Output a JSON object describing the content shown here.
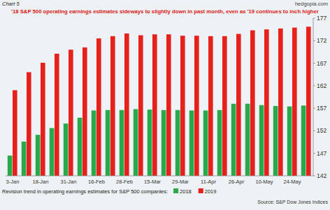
{
  "chart_data": {
    "type": "bar",
    "title": "'18 S&P 500 operating earnings estimates sideways to slightly down in past month, even as '19 continues to inch higher",
    "annotations": [
      "Chart 5",
      "hedgopia.com",
      "Revision trend in operating earnings estimates for S&P 500 companies:",
      "Source: S&P Dow Jones Indices"
    ],
    "categories": [
      "3-Jan",
      null,
      "18-Jan",
      null,
      "31-Jan",
      null,
      "16-Feb",
      null,
      "28-Feb",
      null,
      "15-Mar",
      null,
      "29-Mar",
      null,
      "11-Apr",
      null,
      "26-Apr",
      null,
      "10-May",
      null,
      "24-May",
      null
    ],
    "series": [
      {
        "name": "2018",
        "color": "#2aa84a",
        "values": [
          146.5,
          149.6,
          151.1,
          152.6,
          153.6,
          154.9,
          156.5,
          156.6,
          156.6,
          156.8,
          156.7,
          156.6,
          156.6,
          156.5,
          156.5,
          156.6,
          158.0,
          158.0,
          157.7,
          157.5,
          157.4,
          157.6
        ]
      },
      {
        "name": "2019",
        "color": "#e8201b",
        "values": [
          161.0,
          165.0,
          167.1,
          169.1,
          170.0,
          170.5,
          172.5,
          173.0,
          173.6,
          173.2,
          173.4,
          173.4,
          173.1,
          173.1,
          173.0,
          173.0,
          173.5,
          174.3,
          174.5,
          174.7,
          174.9,
          175.1
        ]
      }
    ],
    "ylim": [
      142,
      177
    ],
    "yticks": [
      142,
      147,
      152,
      157,
      162,
      167,
      172,
      177
    ],
    "grid": false,
    "tick_labels": true,
    "legend": "bottom"
  }
}
